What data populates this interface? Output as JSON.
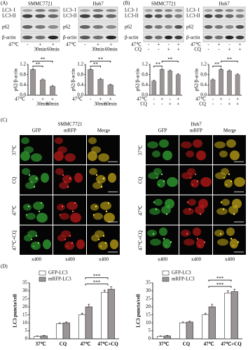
{
  "panels": {
    "A": "(A)",
    "B": "(B)",
    "C": "(C)",
    "D": "(D)"
  },
  "blots": [
    {
      "title": "SMMC7721",
      "labels": [
        "LC3- I",
        "LC3-II",
        "p62",
        "β-actin"
      ],
      "rows": [
        {
          "label": "47℃",
          "values": [
            "-",
            "+",
            "+"
          ]
        }
      ],
      "groups": [
        "30min",
        "60min"
      ]
    },
    {
      "title": "Huh7",
      "labels": [
        "LC3- I",
        "LC3-II",
        "p62",
        "β-actin"
      ],
      "rows": [
        {
          "label": "47℃",
          "values": [
            "-",
            "+",
            "+"
          ]
        }
      ],
      "groups": [
        "30min",
        "60min"
      ]
    },
    {
      "title": "SMMC7721",
      "labels": [
        "LC3- I",
        "LC3-II",
        "p62",
        "β-actin"
      ],
      "rows": [
        {
          "label": "47℃",
          "values": [
            "-",
            "+",
            "-",
            "+"
          ]
        },
        {
          "label": "CQ",
          "values": [
            "-",
            "-",
            "+",
            "+"
          ]
        }
      ]
    },
    {
      "title": "Huh7",
      "labels": [
        "LC3- I",
        "LC3-II",
        "p62",
        "β-actin"
      ],
      "rows": [
        {
          "label": "47℃",
          "values": [
            "-",
            "+",
            "-",
            "+"
          ]
        },
        {
          "label": "CQ",
          "values": [
            "-",
            "-",
            "+",
            "+"
          ]
        }
      ]
    }
  ],
  "microscopy": [
    {
      "title": "SMMC7721",
      "columns": [
        "GFP",
        "mRFP",
        "Merge"
      ],
      "rows": [
        "37℃",
        "CQ",
        "47℃",
        "47℃+CQ"
      ],
      "magnification": [
        "x400",
        "x400",
        "x400"
      ]
    },
    {
      "title": "Huh7",
      "columns": [
        "GFP",
        "mRFP",
        "Merge"
      ],
      "rows": [
        "37℃",
        "CQ",
        "47℃",
        "47℃+CQ"
      ],
      "magnification": [
        "x400",
        "x400",
        "x400"
      ]
    }
  ],
  "chart_data": [
    {
      "type": "bar",
      "y_label": "p62/β-actin",
      "x_label": "47℃",
      "categories": [
        "-",
        "+",
        "+"
      ],
      "x_groups": [
        "30min",
        "60min"
      ],
      "values": [
        1.0,
        0.6,
        0.35
      ],
      "errors": [
        0.03,
        0.03,
        0.03
      ],
      "color": "#9a9494",
      "ylim": [
        0,
        1.2
      ],
      "yticks": [
        {
          "value": 0,
          "label": "0.0"
        },
        0.4,
        0.8,
        1.2
      ],
      "significance": [
        "**",
        "**"
      ]
    },
    {
      "type": "bar",
      "y_label": "p62/β-actin",
      "x_label": "47℃",
      "categories": [
        "-",
        "+",
        "+"
      ],
      "x_groups": [
        "30min",
        "60min"
      ],
      "values": [
        1.0,
        0.62,
        0.4
      ],
      "errors": [
        0.03,
        0.03,
        0.03
      ],
      "color": "#9a9494",
      "ylim": [
        0,
        1.2
      ],
      "yticks": [
        {
          "value": 0,
          "label": "0.0"
        },
        0.4,
        0.8,
        1.2
      ],
      "significance": [
        "**",
        "**"
      ]
    },
    {
      "type": "bar",
      "y_label": "p62/β-actin",
      "x_label": "47℃",
      "categories": [
        "-",
        "+",
        "-",
        "+"
      ],
      "x_row2": {
        "label": "CQ",
        "values": [
          "-",
          "-",
          "+",
          "+"
        ]
      },
      "values": [
        0.55,
        1.0,
        0.95,
        0.8
      ],
      "errors": [
        0.03,
        0.03,
        0.03,
        0.03
      ],
      "color": "#9a9494",
      "ylim": [
        0,
        1.2
      ],
      "yticks": [
        {
          "value": 0,
          "label": "0.0"
        },
        0.4,
        0.8,
        1.2
      ],
      "significance": [
        "**",
        "**"
      ]
    },
    {
      "type": "bar",
      "y_label": "p62/β-actin",
      "x_label": "47℃",
      "categories": [
        "-",
        "+",
        "-",
        "+"
      ],
      "x_row2": {
        "label": "CQ",
        "values": [
          "-",
          "-",
          "+",
          "+"
        ]
      },
      "values": [
        0.6,
        1.0,
        0.95,
        0.8
      ],
      "errors": [
        0.03,
        0.03,
        0.03,
        0.03
      ],
      "color": "#9a9494",
      "ylim": [
        0,
        1.2
      ],
      "yticks": [
        {
          "value": 0,
          "label": "0.0"
        },
        0.4,
        0.8,
        1.2
      ],
      "significance": [
        "**",
        "**"
      ]
    },
    {
      "type": "grouped-bar",
      "y_label": "LC3 puncta/cell",
      "categories": [
        "37℃",
        "CQ",
        "47℃",
        "47℃+CQ"
      ],
      "series": [
        {
          "name": "GFP-LC3",
          "color": "#ffffff",
          "values": [
            1.5,
            9.5,
            15,
            29
          ],
          "errors": [
            0.3,
            0.5,
            1,
            1.5
          ]
        },
        {
          "name": "mRFP-LC3",
          "color": "#9a9494",
          "values": [
            1.8,
            10,
            20,
            31
          ],
          "errors": [
            0.3,
            0.5,
            1.5,
            1.5
          ]
        }
      ],
      "ylim": [
        0,
        35
      ],
      "yticks": [
        0,
        5,
        10,
        15,
        20,
        25,
        30,
        35
      ],
      "legend": "upper left",
      "significance": [
        "***",
        "***"
      ]
    },
    {
      "type": "grouped-bar",
      "y_label": "LC3 puncta/cell",
      "categories": [
        "37℃",
        "CQ",
        "47℃",
        "47℃+CQ"
      ],
      "series": [
        {
          "name": "GFP-LC3",
          "color": "#ffffff",
          "values": [
            1.5,
            10,
            15,
            28.5
          ],
          "errors": [
            0.3,
            0.5,
            1,
            1.5
          ]
        },
        {
          "name": "mRFP-LC3",
          "color": "#9a9494",
          "values": [
            1.8,
            10.5,
            20,
            29.5
          ],
          "errors": [
            0.3,
            0.5,
            1.5,
            1.5
          ]
        }
      ],
      "ylim": [
        0,
        35
      ],
      "yticks": [
        0,
        5,
        10,
        15,
        20,
        25,
        30,
        35
      ],
      "legend": "upper left",
      "significance": [
        "***",
        "***"
      ]
    }
  ]
}
